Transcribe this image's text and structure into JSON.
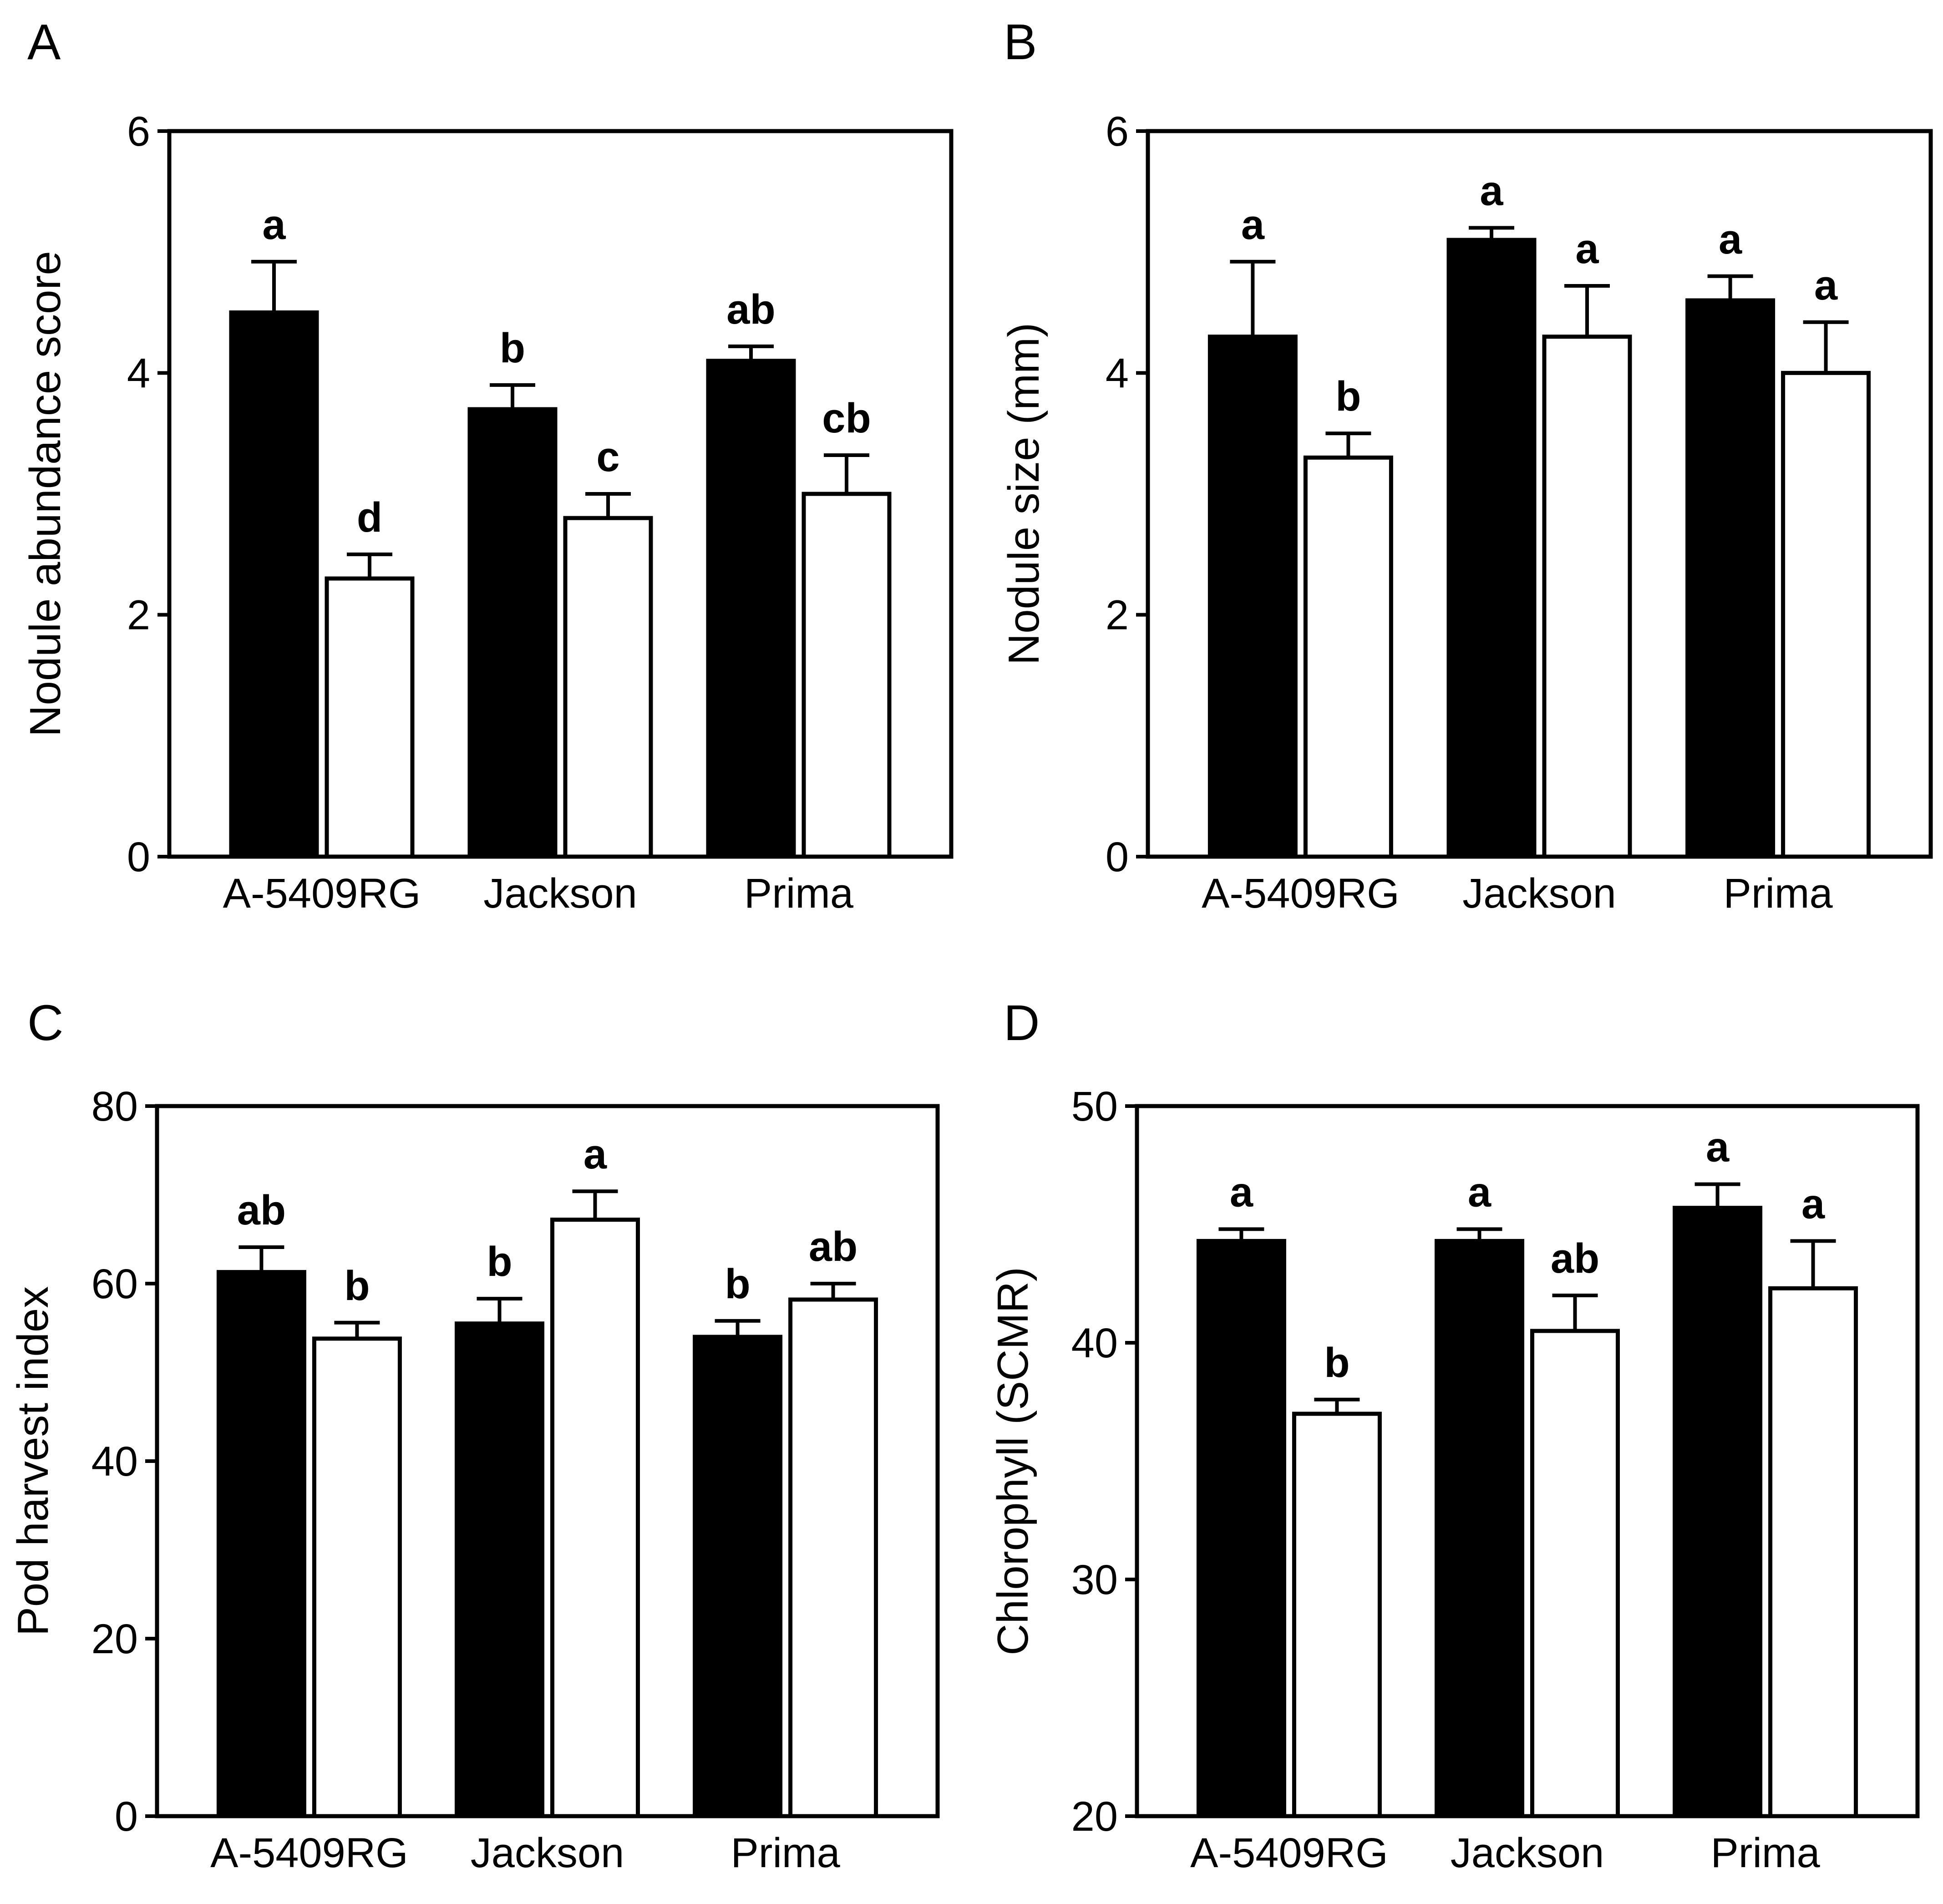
{
  "colors": {
    "filled_bar": "#000000",
    "open_bar": "#ffffff",
    "stroke": "#000000"
  },
  "chart_data": [
    {
      "panel": "A",
      "type": "bar",
      "categories": [
        "A-5409RG",
        "Jackson",
        "Prima"
      ],
      "ylabel": "Nodule abundance score",
      "xlabel": "",
      "ylim": [
        0,
        6
      ],
      "yticks": [
        0,
        2,
        4,
        6
      ],
      "tick_labels": [
        "0",
        "2",
        "4",
        "6"
      ],
      "series": [
        {
          "name": "filled",
          "values": [
            4.5,
            3.7,
            4.1
          ],
          "errors": [
            0.42,
            0.2,
            0.12
          ],
          "labels": [
            "a",
            "b",
            "ab"
          ]
        },
        {
          "name": "open",
          "values": [
            2.3,
            2.8,
            3.0
          ],
          "errors": [
            0.2,
            0.2,
            0.32
          ],
          "labels": [
            "d",
            "c",
            "cb"
          ]
        }
      ]
    },
    {
      "panel": "B",
      "type": "bar",
      "categories": [
        "A-5409RG",
        "Jackson",
        "Prima"
      ],
      "ylabel": "Nodule size (mm)",
      "xlabel": "",
      "ylim": [
        0,
        6
      ],
      "yticks": [
        0,
        2,
        4,
        6
      ],
      "tick_labels": [
        "0",
        "2",
        "4",
        "6"
      ],
      "series": [
        {
          "name": "filled",
          "values": [
            4.3,
            5.1,
            4.6
          ],
          "errors": [
            0.62,
            0.1,
            0.2
          ],
          "labels": [
            "a",
            "a",
            "a"
          ]
        },
        {
          "name": "open",
          "values": [
            3.3,
            4.3,
            4.0
          ],
          "errors": [
            0.2,
            0.42,
            0.42
          ],
          "labels": [
            "b",
            "a",
            "a"
          ]
        }
      ]
    },
    {
      "panel": "C",
      "type": "bar",
      "categories": [
        "A-5409RG",
        "Jackson",
        "Prima"
      ],
      "ylabel": "Pod harvest index",
      "xlabel": "",
      "ylim": [
        0,
        80
      ],
      "yticks": [
        0,
        20,
        40,
        60,
        80
      ],
      "tick_labels": [
        "0",
        "20",
        "40",
        "60",
        "80"
      ],
      "series": [
        {
          "name": "filled",
          "values": [
            61.3,
            55.5,
            54
          ],
          "errors": [
            2.8,
            2.8,
            1.8
          ],
          "labels": [
            "ab",
            "b",
            "b"
          ]
        },
        {
          "name": "open",
          "values": [
            53.8,
            67.2,
            58.2
          ],
          "errors": [
            1.8,
            3.2,
            1.8
          ],
          "labels": [
            "b",
            "a",
            "ab"
          ]
        }
      ]
    },
    {
      "panel": "D",
      "type": "bar",
      "categories": [
        "A-5409RG",
        "Jackson",
        "Prima"
      ],
      "ylabel": "Chlorophyll (SCMR)",
      "xlabel": "",
      "ylim": [
        20,
        50
      ],
      "yticks": [
        20,
        30,
        40,
        50
      ],
      "tick_labels": [
        "20",
        "30",
        "40",
        "50"
      ],
      "series": [
        {
          "name": "filled",
          "values": [
            44.3,
            44.3,
            45.7
          ],
          "errors": [
            0.5,
            0.5,
            1.0
          ],
          "labels": [
            "a",
            "a",
            "a"
          ]
        },
        {
          "name": "open",
          "values": [
            37,
            40.5,
            42.3
          ],
          "errors": [
            0.6,
            1.5,
            2.0
          ],
          "labels": [
            "b",
            "ab",
            "a"
          ]
        }
      ]
    }
  ]
}
